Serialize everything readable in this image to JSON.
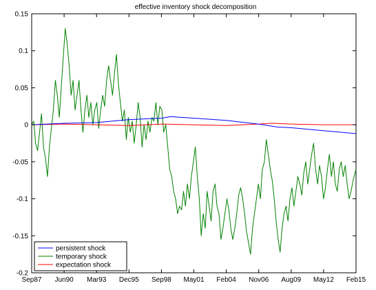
{
  "chart_data": {
    "type": "line",
    "title": "effective inventory shock decomposition",
    "xlabel": "",
    "ylabel": "",
    "x_ticks": [
      "Sep87",
      "Jun90",
      "Mar93",
      "Dec95",
      "Sep98",
      "May01",
      "Feb04",
      "Nov06",
      "Aug09",
      "May12",
      "Feb15"
    ],
    "xlim": [
      "1987-09",
      "2015-02"
    ],
    "ylim": [
      -0.2,
      0.15
    ],
    "y_ticks": [
      -0.2,
      -0.15,
      -0.1,
      -0.05,
      0,
      0.05,
      0.1,
      0.15
    ],
    "y_tick_labels": [
      "-0.2",
      "-0.15",
      "-0.1",
      "-0.05",
      "0",
      "0.05",
      "0.1",
      "0.15"
    ],
    "grid": false,
    "legend_position": "bottom-left",
    "series": [
      {
        "name": "persistent shock",
        "color": "#0000ff",
        "points": [
          [
            "1987-09",
            0.0
          ],
          [
            "1990-06",
            0.002
          ],
          [
            "1993-03",
            0.003
          ],
          [
            "1995-12",
            0.007
          ],
          [
            "1998-09",
            0.009
          ],
          [
            "1999-06",
            0.011
          ],
          [
            "2001-05",
            0.009
          ],
          [
            "2004-02",
            0.006
          ],
          [
            "2006-11",
            0.001
          ],
          [
            "2008-06",
            -0.003
          ],
          [
            "2009-08",
            -0.004
          ],
          [
            "2012-05",
            -0.008
          ],
          [
            "2015-02",
            -0.012
          ]
        ]
      },
      {
        "name": "temporary shock",
        "color": "#008000",
        "points": [
          [
            "1987-09",
            0.0
          ],
          [
            "1987-11",
            0.005
          ],
          [
            "1988-01",
            -0.025
          ],
          [
            "1988-03",
            -0.035
          ],
          [
            "1988-05",
            -0.01
          ],
          [
            "1988-07",
            0.015
          ],
          [
            "1988-09",
            -0.03
          ],
          [
            "1988-11",
            -0.045
          ],
          [
            "1989-01",
            -0.07
          ],
          [
            "1989-03",
            -0.03
          ],
          [
            "1989-05",
            -0.005
          ],
          [
            "1989-07",
            0.02
          ],
          [
            "1989-09",
            0.06
          ],
          [
            "1989-11",
            0.04
          ],
          [
            "1990-01",
            0.01
          ],
          [
            "1990-03",
            0.05
          ],
          [
            "1990-05",
            0.09
          ],
          [
            "1990-07",
            0.13
          ],
          [
            "1990-09",
            0.11
          ],
          [
            "1990-11",
            0.08
          ],
          [
            "1991-01",
            0.04
          ],
          [
            "1991-03",
            0.06
          ],
          [
            "1991-05",
            0.02
          ],
          [
            "1991-07",
            0.04
          ],
          [
            "1991-09",
            0.06
          ],
          [
            "1991-11",
            0.02
          ],
          [
            "1992-01",
            -0.01
          ],
          [
            "1992-03",
            0.02
          ],
          [
            "1992-05",
            0.04
          ],
          [
            "1992-07",
            0.01
          ],
          [
            "1992-09",
            0.03
          ],
          [
            "1992-11",
            0.0
          ],
          [
            "1993-01",
            0.02
          ],
          [
            "1993-03",
            0.03
          ],
          [
            "1993-05",
            -0.005
          ],
          [
            "1993-07",
            0.02
          ],
          [
            "1993-09",
            0.04
          ],
          [
            "1993-11",
            0.025
          ],
          [
            "1994-01",
            0.06
          ],
          [
            "1994-03",
            0.08
          ],
          [
            "1994-05",
            0.06
          ],
          [
            "1994-07",
            0.04
          ],
          [
            "1994-09",
            0.07
          ],
          [
            "1994-11",
            0.095
          ],
          [
            "1995-01",
            0.055
          ],
          [
            "1995-03",
            0.03
          ],
          [
            "1995-05",
            0.005
          ],
          [
            "1995-07",
            0.02
          ],
          [
            "1995-09",
            -0.02
          ],
          [
            "1995-11",
            0.01
          ],
          [
            "1996-01",
            -0.01
          ],
          [
            "1996-03",
            0.005
          ],
          [
            "1996-05",
            -0.025
          ],
          [
            "1996-07",
            0.0
          ],
          [
            "1996-09",
            0.03
          ],
          [
            "1996-11",
            0.01
          ],
          [
            "1997-01",
            -0.03
          ],
          [
            "1997-03",
            0.0
          ],
          [
            "1997-05",
            -0.02
          ],
          [
            "1997-07",
            0.005
          ],
          [
            "1997-09",
            -0.01
          ],
          [
            "1997-11",
            0.01
          ],
          [
            "1998-01",
            0.005
          ],
          [
            "1998-03",
            0.03
          ],
          [
            "1998-05",
            0.0
          ],
          [
            "1998-07",
            0.025
          ],
          [
            "1998-09",
            0.02
          ],
          [
            "1998-11",
            -0.01
          ],
          [
            "1999-01",
            0.0
          ],
          [
            "1999-03",
            -0.03
          ],
          [
            "1999-05",
            -0.06
          ],
          [
            "1999-07",
            -0.07
          ],
          [
            "1999-09",
            -0.09
          ],
          [
            "1999-11",
            -0.1
          ],
          [
            "2000-01",
            -0.12
          ],
          [
            "2000-03",
            -0.11
          ],
          [
            "2000-05",
            -0.115
          ],
          [
            "2000-07",
            -0.09
          ],
          [
            "2000-09",
            -0.11
          ],
          [
            "2000-11",
            -0.08
          ],
          [
            "2001-01",
            -0.1
          ],
          [
            "2001-03",
            -0.07
          ],
          [
            "2001-05",
            -0.05
          ],
          [
            "2001-07",
            -0.03
          ],
          [
            "2001-09",
            -0.07
          ],
          [
            "2001-11",
            -0.1
          ],
          [
            "2002-01",
            -0.15
          ],
          [
            "2002-03",
            -0.12
          ],
          [
            "2002-05",
            -0.14
          ],
          [
            "2002-07",
            -0.09
          ],
          [
            "2002-09",
            -0.11
          ],
          [
            "2002-11",
            -0.13
          ],
          [
            "2003-01",
            -0.09
          ],
          [
            "2003-03",
            -0.08
          ],
          [
            "2003-05",
            -0.11
          ],
          [
            "2003-07",
            -0.12
          ],
          [
            "2003-09",
            -0.155
          ],
          [
            "2003-11",
            -0.14
          ],
          [
            "2004-01",
            -0.12
          ],
          [
            "2004-03",
            -0.1
          ],
          [
            "2004-05",
            -0.115
          ],
          [
            "2004-07",
            -0.14
          ],
          [
            "2004-09",
            -0.155
          ],
          [
            "2004-11",
            -0.14
          ],
          [
            "2005-01",
            -0.12
          ],
          [
            "2005-03",
            -0.095
          ],
          [
            "2005-05",
            -0.085
          ],
          [
            "2005-07",
            -0.1
          ],
          [
            "2005-09",
            -0.12
          ],
          [
            "2005-11",
            -0.145
          ],
          [
            "2006-01",
            -0.16
          ],
          [
            "2006-03",
            -0.175
          ],
          [
            "2006-05",
            -0.14
          ],
          [
            "2006-07",
            -0.12
          ],
          [
            "2006-09",
            -0.1
          ],
          [
            "2006-11",
            -0.08
          ],
          [
            "2007-01",
            -0.1
          ],
          [
            "2007-03",
            -0.06
          ],
          [
            "2007-05",
            -0.05
          ],
          [
            "2007-07",
            -0.02
          ],
          [
            "2007-09",
            -0.04
          ],
          [
            "2007-11",
            -0.06
          ],
          [
            "2008-01",
            -0.075
          ],
          [
            "2008-03",
            -0.1
          ],
          [
            "2008-05",
            -0.13
          ],
          [
            "2008-07",
            -0.155
          ],
          [
            "2008-09",
            -0.172
          ],
          [
            "2008-11",
            -0.14
          ],
          [
            "2009-01",
            -0.12
          ],
          [
            "2009-03",
            -0.11
          ],
          [
            "2009-05",
            -0.13
          ],
          [
            "2009-07",
            -0.1
          ],
          [
            "2009-09",
            -0.085
          ],
          [
            "2009-11",
            -0.11
          ],
          [
            "2010-01",
            -0.09
          ],
          [
            "2010-03",
            -0.07
          ],
          [
            "2010-05",
            -0.08
          ],
          [
            "2010-07",
            -0.095
          ],
          [
            "2010-09",
            -0.065
          ],
          [
            "2010-11",
            -0.05
          ],
          [
            "2011-01",
            -0.08
          ],
          [
            "2011-03",
            -0.06
          ],
          [
            "2011-05",
            -0.04
          ],
          [
            "2011-07",
            -0.025
          ],
          [
            "2011-09",
            -0.06
          ],
          [
            "2011-11",
            -0.08
          ],
          [
            "2012-01",
            -0.055
          ],
          [
            "2012-03",
            -0.07
          ],
          [
            "2012-05",
            -0.1
          ],
          [
            "2012-07",
            -0.085
          ],
          [
            "2012-09",
            -0.06
          ],
          [
            "2012-11",
            -0.04
          ],
          [
            "2013-01",
            -0.07
          ],
          [
            "2013-03",
            -0.05
          ],
          [
            "2013-05",
            -0.08
          ],
          [
            "2013-07",
            -0.09
          ],
          [
            "2013-09",
            -0.06
          ],
          [
            "2013-11",
            -0.05
          ],
          [
            "2014-01",
            -0.07
          ],
          [
            "2014-03",
            -0.055
          ],
          [
            "2014-05",
            -0.08
          ],
          [
            "2014-07",
            -0.1
          ],
          [
            "2014-09",
            -0.09
          ],
          [
            "2014-11",
            -0.075
          ],
          [
            "2015-01",
            -0.065
          ],
          [
            "2015-02",
            -0.06
          ]
        ]
      },
      {
        "name": "expectation shock",
        "color": "#ff0000",
        "points": [
          [
            "1987-09",
            0.0
          ],
          [
            "1990-06",
            0.001
          ],
          [
            "1993-03",
            0.0
          ],
          [
            "1995-12",
            -0.001
          ],
          [
            "1998-09",
            0.001
          ],
          [
            "2001-05",
            0.0
          ],
          [
            "2004-02",
            -0.001
          ],
          [
            "2006-11",
            0.001
          ],
          [
            "2008-01",
            0.002
          ],
          [
            "2009-08",
            0.001
          ],
          [
            "2012-05",
            0.0
          ],
          [
            "2015-02",
            0.0
          ]
        ]
      }
    ]
  }
}
